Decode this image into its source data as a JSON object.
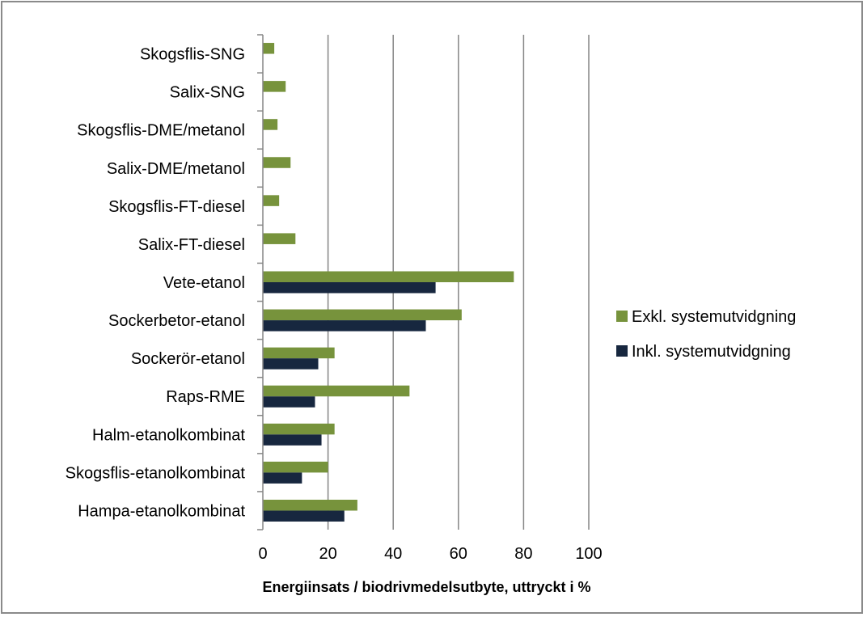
{
  "chart_data": {
    "type": "bar",
    "orientation": "horizontal",
    "categories": [
      "Skogsflis-SNG",
      "Salix-SNG",
      "Skogsflis-DME/metanol",
      "Salix-DME/metanol",
      "Skogsflis-FT-diesel",
      "Salix-FT-diesel",
      "Vete-etanol",
      "Sockerbetor-etanol",
      "Sockerör-etanol",
      "Raps-RME",
      "Halm-etanolkombinat",
      "Skogsflis-etanolkombinat",
      "Hampa-etanolkombinat"
    ],
    "series": [
      {
        "name": "Exkl. systemutvidgning",
        "color": "#77933c",
        "values": [
          3.5,
          7,
          4.5,
          8.5,
          5,
          10,
          77,
          61,
          22,
          45,
          22,
          20,
          29
        ]
      },
      {
        "name": "Inkl. systemutvidgning",
        "color": "#17273f",
        "values": [
          null,
          null,
          null,
          null,
          null,
          null,
          53,
          50,
          17,
          16,
          18,
          12,
          25
        ]
      }
    ],
    "xlabel": "Energiinsats / biodrivmedelsutbyte, uttryckt i %",
    "ylabel": "",
    "xlim": [
      0,
      100
    ],
    "xticks": [
      "0",
      "20",
      "40",
      "60",
      "80",
      "100"
    ],
    "grid": "vertical",
    "legend": "right"
  }
}
